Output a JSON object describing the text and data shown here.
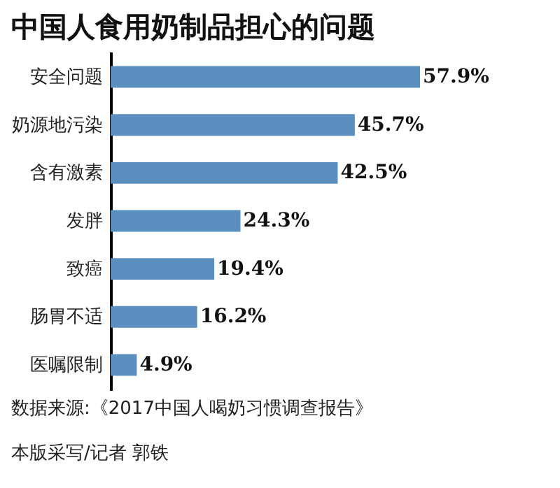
{
  "chart_data": {
    "type": "bar",
    "orientation": "horizontal",
    "title": "中国人食用奶制品担心的问题",
    "categories": [
      "安全问题",
      "奶源地污染",
      "含有激素",
      "发胖",
      "致癌",
      "肠胃不适",
      "医嘱限制"
    ],
    "values": [
      57.9,
      45.7,
      42.5,
      24.3,
      19.4,
      16.2,
      4.9
    ],
    "value_labels": [
      "57.9%",
      "45.7%",
      "42.5%",
      "24.3%",
      "19.4%",
      "16.2%",
      "4.9%"
    ],
    "color": "#5b8fc0",
    "annotations": [
      "数据来源:《2017中国人喝奶习惯调查报告》",
      "本版采写/记者  郭铁"
    ]
  }
}
